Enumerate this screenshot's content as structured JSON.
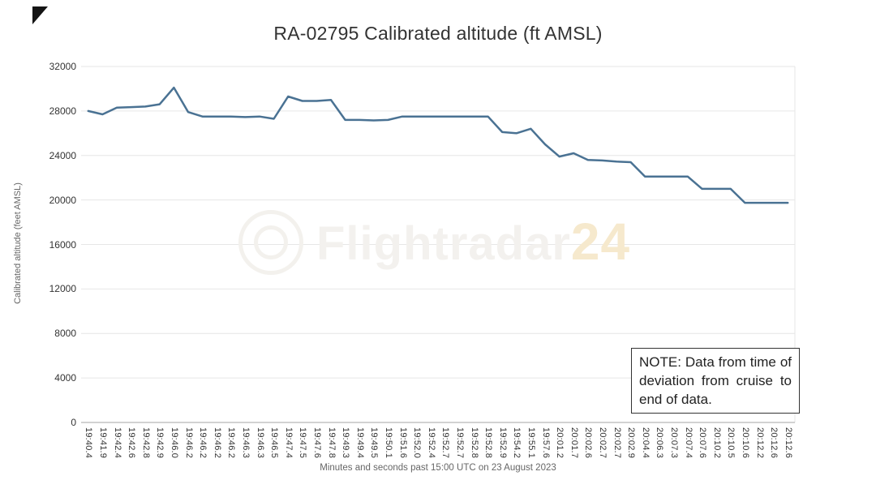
{
  "chart_data": {
    "type": "line",
    "title": "RA-02795 Calibrated altitude (ft AMSL)",
    "xlabel": "Minutes and seconds past 15:00 UTC on 23 August 2023",
    "ylabel": "Calibrated altitude (feet AMSL)",
    "ylim": [
      0,
      32000
    ],
    "yticks": [
      0,
      4000,
      8000,
      12000,
      16000,
      20000,
      24000,
      28000,
      32000
    ],
    "grid": "horizontal",
    "legend": "none",
    "line_color": "#4a7293",
    "grid_color": "#e6e6e6",
    "axis_line_color": "#a6a6a6",
    "categories": [
      "19:40.4",
      "19:41.9",
      "19:42.4",
      "19:42.6",
      "19:42.8",
      "19:42.9",
      "19:46.0",
      "19:46.2",
      "19:46.2",
      "19:46.2",
      "19:46.2",
      "19:46.3",
      "19:46.3",
      "19:46.5",
      "19:47.4",
      "19:47.5",
      "19:47.6",
      "19:47.8",
      "19:49.3",
      "19:49.4",
      "19:49.5",
      "19:50.1",
      "19:51.6",
      "19:52.0",
      "19:52.4",
      "19:52.7",
      "19:52.7",
      "19:52.8",
      "19:52.8",
      "19:52.9",
      "19:54.2",
      "19:55.1",
      "19:57.6",
      "20:01.2",
      "20:01.7",
      "20:02.6",
      "20:02.7",
      "20:02.7",
      "20:02.9",
      "20:04.4",
      "20:06.3",
      "20:07.3",
      "20:07.4",
      "20:07.6",
      "20:10.2",
      "20:10.5",
      "20:10.6",
      "20:12.2",
      "20:12.6",
      "20:12.6"
    ],
    "values": [
      28000,
      27700,
      28300,
      28350,
      28400,
      28600,
      30100,
      27900,
      27500,
      27500,
      27500,
      27450,
      27500,
      27300,
      29300,
      28900,
      28900,
      29000,
      27200,
      27200,
      27150,
      27200,
      27500,
      27500,
      27500,
      27500,
      27500,
      27500,
      27500,
      26100,
      26000,
      26400,
      25000,
      23900,
      24200,
      23600,
      23550,
      23450,
      23400,
      22100,
      22100,
      22100,
      22100,
      21000,
      21000,
      21000,
      19750,
      19750,
      19750,
      19750
    ]
  },
  "note": {
    "text": "NOTE: Data from time of deviation from cruise to end of data."
  },
  "watermark": {
    "text_main": "Flightradar",
    "text_accent": "24"
  }
}
